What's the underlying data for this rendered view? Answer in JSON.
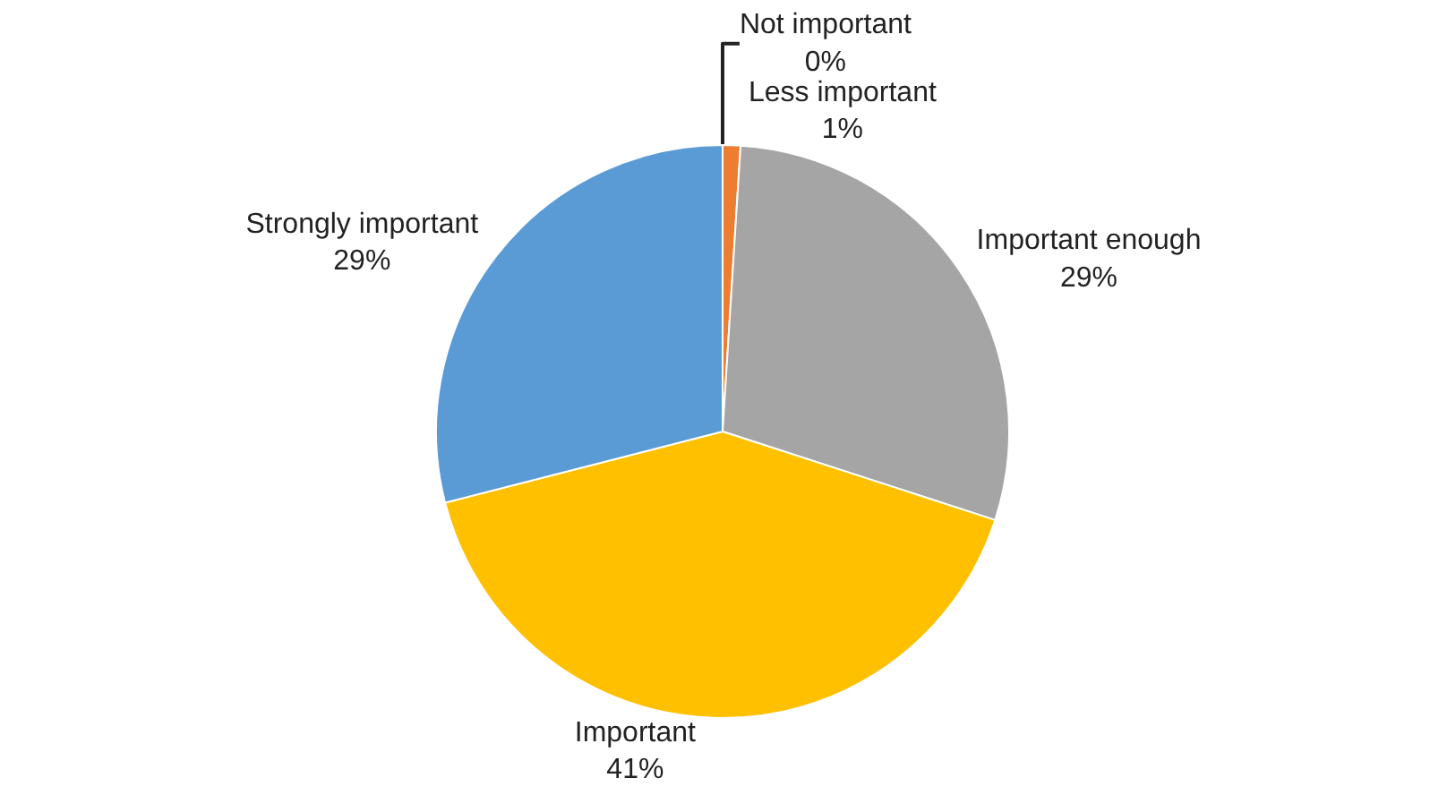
{
  "chart_data": {
    "type": "pie",
    "categories": [
      "Not important",
      "Less important",
      "Important enough",
      "Important",
      "Strongly important"
    ],
    "values": [
      0,
      1,
      29,
      41,
      29
    ],
    "colors": [
      "#4472c4",
      "#ed7d31",
      "#a5a5a5",
      "#ffc000",
      "#5b9bd5"
    ],
    "value_labels": [
      "0%",
      "1%",
      "29%",
      "41%",
      "29%"
    ],
    "legend": false
  }
}
